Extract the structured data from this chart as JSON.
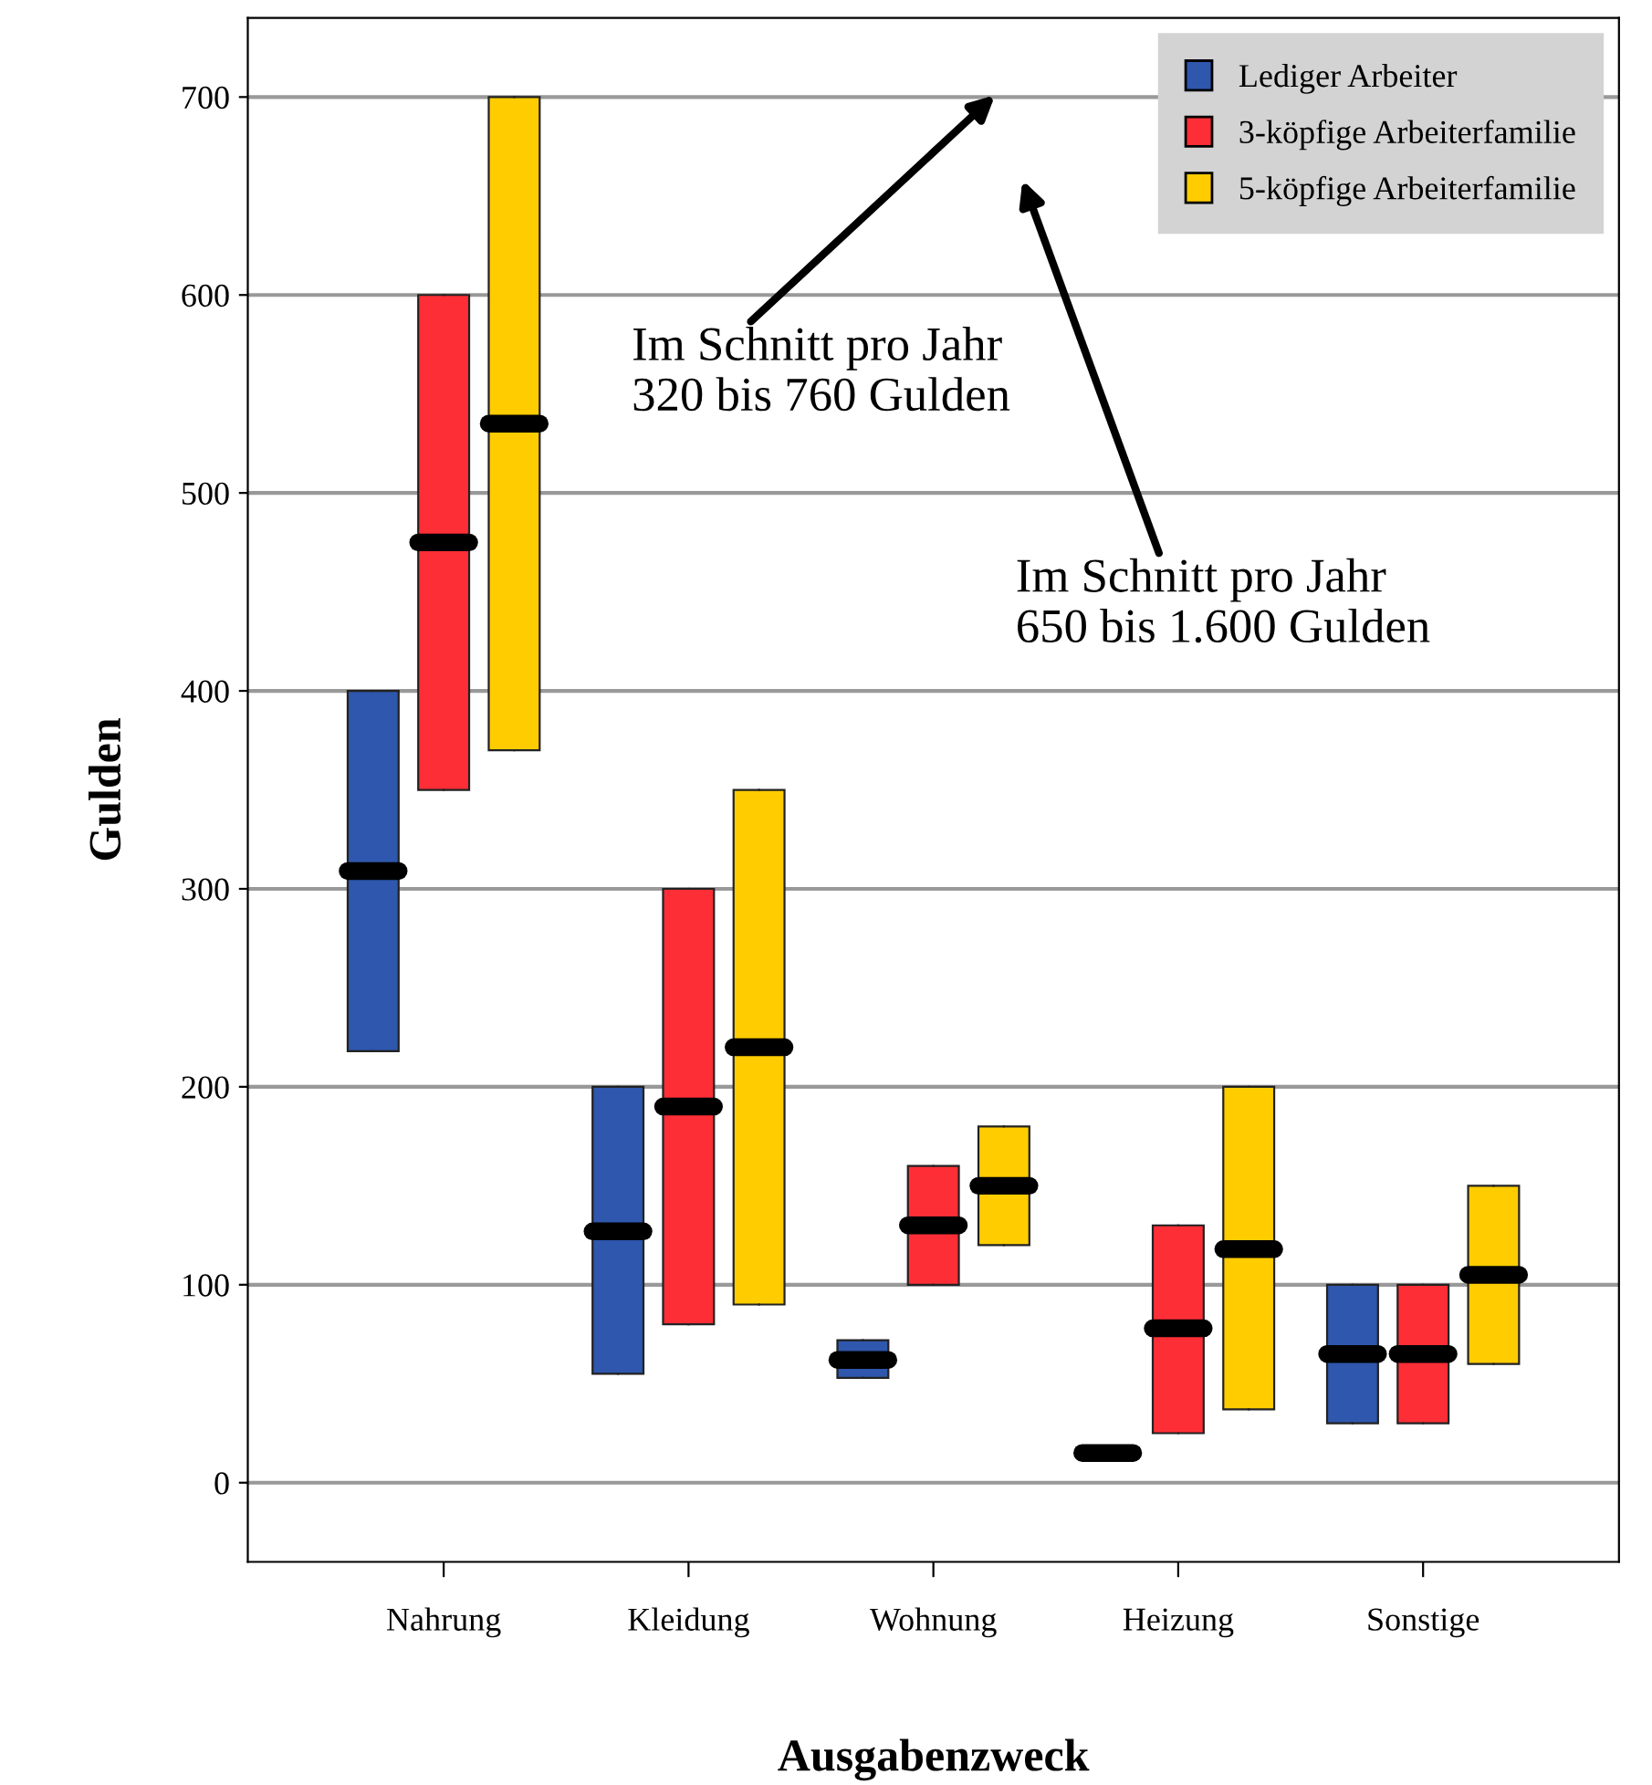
{
  "chart_data": {
    "type": "box",
    "xlabel": "Ausgabenzweck",
    "ylabel": "Gulden",
    "categories": [
      "Nahrung",
      "Kleidung",
      "Wohnung",
      "Heizung",
      "Sonstige"
    ],
    "series": [
      {
        "name": "Lediger Arbeiter",
        "color": "#2e57ad",
        "boxes": [
          {
            "low": 218,
            "q1": 218,
            "median": 309,
            "q3": 400,
            "high": 400
          },
          {
            "low": 55,
            "q1": 55,
            "median": 127,
            "q3": 200,
            "high": 200
          },
          {
            "low": 53,
            "q1": 53,
            "median": 62,
            "q3": 72,
            "high": 72
          },
          {
            "low": 12,
            "q1": 12,
            "median": 15,
            "q3": 18,
            "high": 18
          },
          {
            "low": 30,
            "q1": 30,
            "median": 65,
            "q3": 100,
            "high": 100
          }
        ]
      },
      {
        "name": "3-köpfige Arbeiterfamilie",
        "color": "#fe2e37",
        "boxes": [
          {
            "low": 350,
            "q1": 350,
            "median": 475,
            "q3": 600,
            "high": 600
          },
          {
            "low": 80,
            "q1": 80,
            "median": 190,
            "q3": 300,
            "high": 300
          },
          {
            "low": 100,
            "q1": 100,
            "median": 130,
            "q3": 160,
            "high": 160
          },
          {
            "low": 25,
            "q1": 25,
            "median": 78,
            "q3": 130,
            "high": 130
          },
          {
            "low": 30,
            "q1": 30,
            "median": 65,
            "q3": 100,
            "high": 100
          }
        ]
      },
      {
        "name": "5-köpfige Arbeiterfamilie",
        "color": "#ffcc00",
        "boxes": [
          {
            "low": 370,
            "q1": 370,
            "median": 535,
            "q3": 700,
            "high": 700
          },
          {
            "low": 90,
            "q1": 90,
            "median": 220,
            "q3": 350,
            "high": 350
          },
          {
            "low": 120,
            "q1": 120,
            "median": 150,
            "q3": 180,
            "high": 180
          },
          {
            "low": 37,
            "q1": 37,
            "median": 118,
            "q3": 200,
            "high": 200
          },
          {
            "low": 60,
            "q1": 60,
            "median": 105,
            "q3": 150,
            "high": 150
          }
        ]
      }
    ],
    "ylim": [
      -40,
      740
    ],
    "yticks": [
      0,
      100,
      200,
      300,
      400,
      500,
      600,
      700
    ],
    "grid": "y",
    "legend": "top right",
    "annotations": [
      "Im Schnitt pro Jahr\n320 bis 760 Gulden",
      "Im Schnitt pro Jahr\n650 bis 1.600 Gulden"
    ]
  }
}
